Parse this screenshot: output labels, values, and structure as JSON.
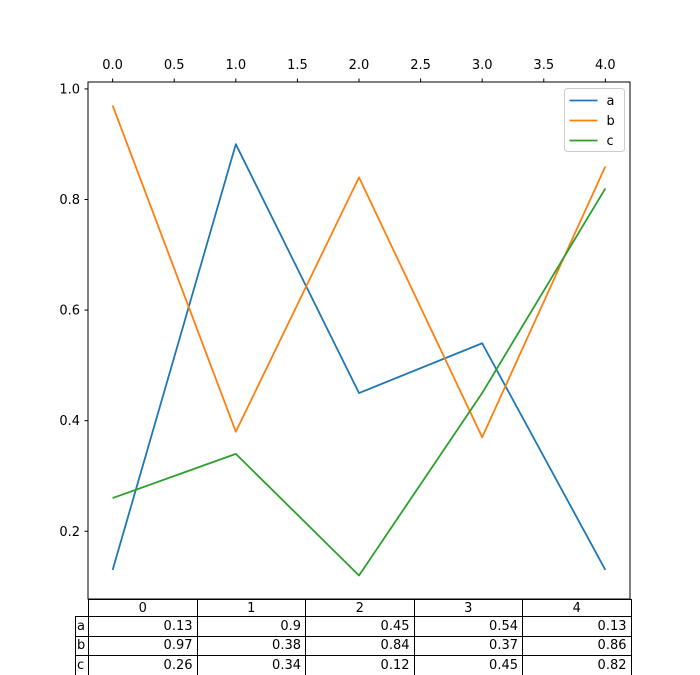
{
  "figure": {
    "background": "#ffffff",
    "text_color": "#000000",
    "spine_color": "#000000",
    "legend_border_color": "#cccccc"
  },
  "chart_data": {
    "type": "line",
    "title": "",
    "xlabel": "",
    "ylabel": "",
    "grid": false,
    "x": [
      0,
      1,
      2,
      3,
      4
    ],
    "series": [
      {
        "name": "a",
        "color": "#1f77b4",
        "values": [
          0.13,
          0.9,
          0.45,
          0.54,
          0.13
        ]
      },
      {
        "name": "b",
        "color": "#ff7f0e",
        "values": [
          0.97,
          0.38,
          0.84,
          0.37,
          0.86
        ]
      },
      {
        "name": "c",
        "color": "#2ca02c",
        "values": [
          0.26,
          0.34,
          0.12,
          0.45,
          0.82
        ]
      }
    ],
    "xlim": [
      -0.2,
      4.2
    ],
    "ylim": [
      0.0775,
      1.0125
    ],
    "xticks": {
      "position": "top",
      "values": [
        0,
        0.5,
        1,
        1.5,
        2,
        2.5,
        3,
        3.5,
        4
      ],
      "labels": [
        "0.0",
        "0.5",
        "1.0",
        "1.5",
        "2.0",
        "2.5",
        "3.0",
        "3.5",
        "4.0"
      ]
    },
    "yticks": {
      "position": "left",
      "values": [
        0.2,
        0.4,
        0.6,
        0.8,
        1.0
      ],
      "labels": [
        "0.2",
        "0.4",
        "0.6",
        "0.8",
        "1.0"
      ]
    },
    "legend": {
      "position": "upper right",
      "entries": [
        "a",
        "b",
        "c"
      ]
    }
  },
  "table": {
    "column_headers": [
      "0",
      "1",
      "2",
      "3",
      "4"
    ],
    "rows": [
      {
        "label": "a",
        "values": [
          "0.13",
          "0.9",
          "0.45",
          "0.54",
          "0.13"
        ]
      },
      {
        "label": "b",
        "values": [
          "0.97",
          "0.38",
          "0.84",
          "0.37",
          "0.86"
        ]
      },
      {
        "label": "c",
        "values": [
          "0.26",
          "0.34",
          "0.12",
          "0.45",
          "0.82"
        ]
      }
    ]
  }
}
